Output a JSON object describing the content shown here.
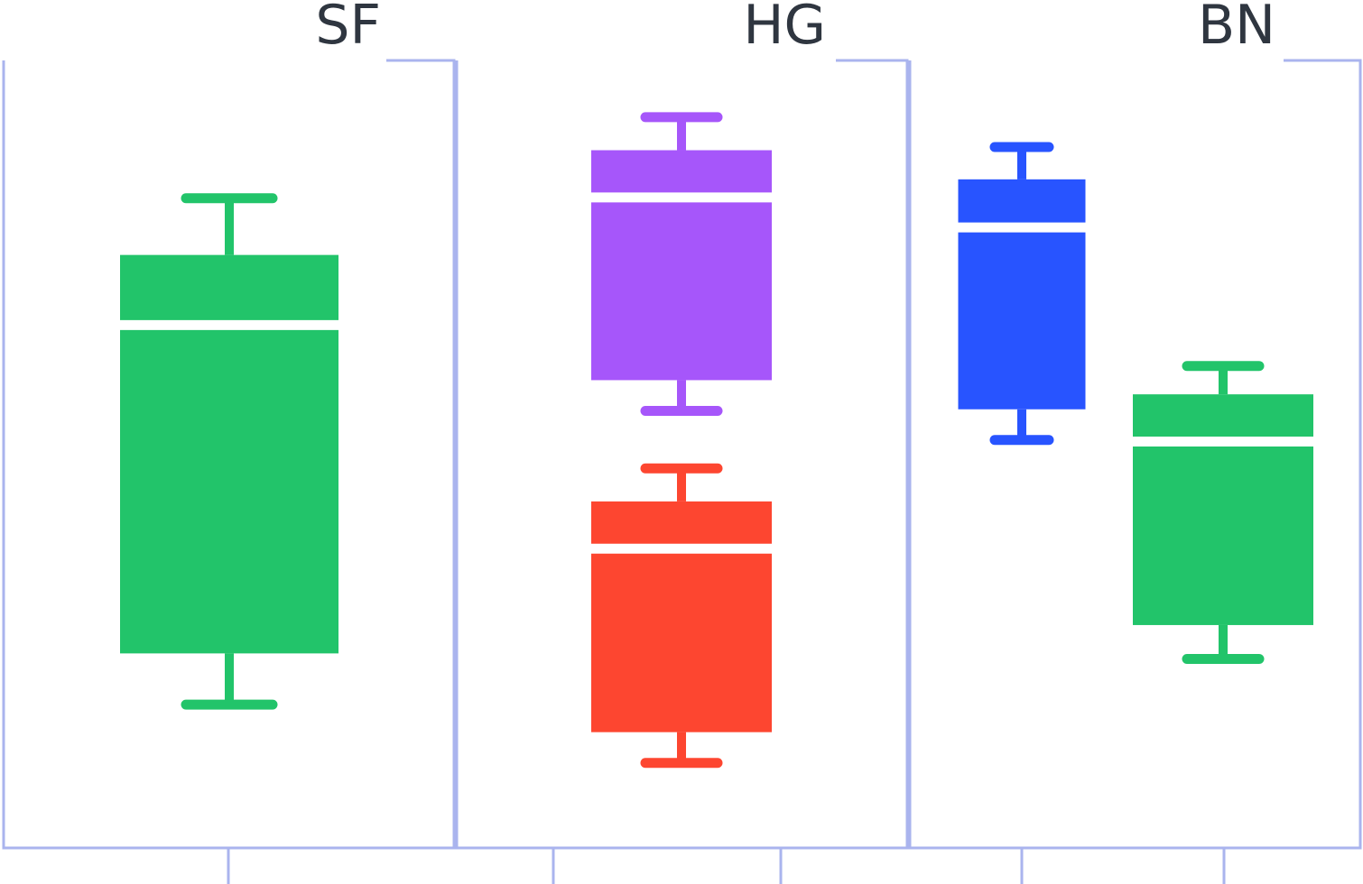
{
  "colors": {
    "frame": "#aab4ee",
    "label": "#2f3640",
    "green": "#22c46a",
    "purple": "#a656fa",
    "red": "#fd4630",
    "blue": "#2854ff",
    "separator": "#ffffff"
  },
  "chart_data": {
    "type": "box",
    "title": "",
    "xlabel": "",
    "ylabel": "",
    "grid": false,
    "legend": "none",
    "ylim": [
      0,
      1
    ],
    "panels": [
      {
        "label": "SF",
        "boxes": [
          {
            "color_key": "green",
            "whisker_high": 0.825,
            "q3": 0.753,
            "median": 0.664,
            "q1": 0.247,
            "whisker_low": 0.182
          }
        ]
      },
      {
        "label": "HG",
        "boxes": [
          {
            "color_key": "purple",
            "whisker_high": 0.928,
            "q3": 0.886,
            "median": 0.826,
            "q1": 0.594,
            "whisker_low": 0.555
          },
          {
            "color_key": "red",
            "whisker_high": 0.482,
            "q3": 0.44,
            "median": 0.38,
            "q1": 0.147,
            "whisker_low": 0.108
          }
        ]
      },
      {
        "label": "BN",
        "boxes": [
          {
            "color_key": "blue",
            "whisker_high": 0.89,
            "q3": 0.849,
            "median": 0.788,
            "q1": 0.557,
            "whisker_low": 0.518
          },
          {
            "color_key": "green",
            "whisker_high": 0.612,
            "q3": 0.576,
            "median": 0.516,
            "q1": 0.283,
            "whisker_low": 0.24
          }
        ]
      }
    ]
  }
}
